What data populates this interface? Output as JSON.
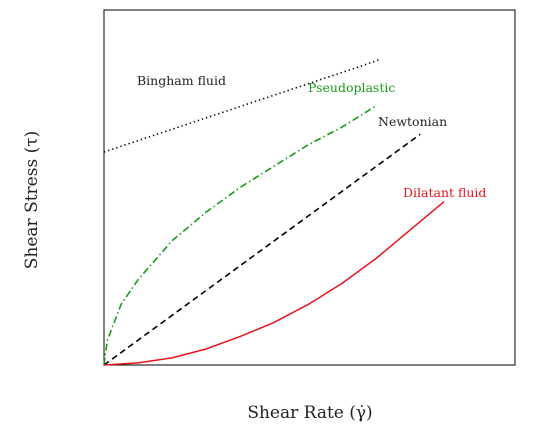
{
  "chart_data": {
    "type": "line",
    "title": "",
    "xlabel": "Shear Rate (γ̇)",
    "ylabel": "Shear Stress (τ)",
    "xlim": [
      0,
      1
    ],
    "ylim": [
      0,
      1
    ],
    "grid": false,
    "legend": "none",
    "series": [
      {
        "name": "Bingham fluid",
        "color": "#000000",
        "style": "dotted",
        "x": [
          0,
          0.25,
          0.5,
          0.75,
          0.81
        ],
        "y": [
          0.6,
          0.68,
          0.76,
          0.84,
          0.86
        ]
      },
      {
        "name": "Pseudoplastic",
        "color": "#1a9a1a",
        "style": "dashdot",
        "x": [
          0,
          0.01,
          0.05,
          0.1,
          0.2,
          0.3,
          0.4,
          0.5,
          0.6,
          0.7,
          0.8
        ],
        "y": [
          0,
          0.07,
          0.17,
          0.24,
          0.35,
          0.43,
          0.5,
          0.56,
          0.62,
          0.67,
          0.73
        ]
      },
      {
        "name": "Newtonian",
        "color": "#000000",
        "style": "dashed",
        "x": [
          0,
          0.93
        ],
        "y": [
          0,
          0.65
        ]
      },
      {
        "name": "Dilatant fluid",
        "color": "#e8141c",
        "style": "solid",
        "x": [
          0,
          0.1,
          0.2,
          0.3,
          0.4,
          0.5,
          0.6,
          0.7,
          0.8,
          0.9,
          1.0
        ],
        "y": [
          0,
          0.006,
          0.02,
          0.045,
          0.08,
          0.12,
          0.17,
          0.23,
          0.3,
          0.38,
          0.46
        ]
      }
    ],
    "annotations": [
      {
        "text": "Bingham fluid",
        "series": "Bingham fluid",
        "color": "#222222"
      },
      {
        "text": "Pseudoplastic",
        "series": "Pseudoplastic",
        "color": "#1a9a1a"
      },
      {
        "text": "Newtonian",
        "series": "Newtonian",
        "color": "#222222"
      },
      {
        "text": "Dilatant fluid",
        "series": "Dilatant fluid",
        "color": "#e8141c"
      }
    ]
  }
}
